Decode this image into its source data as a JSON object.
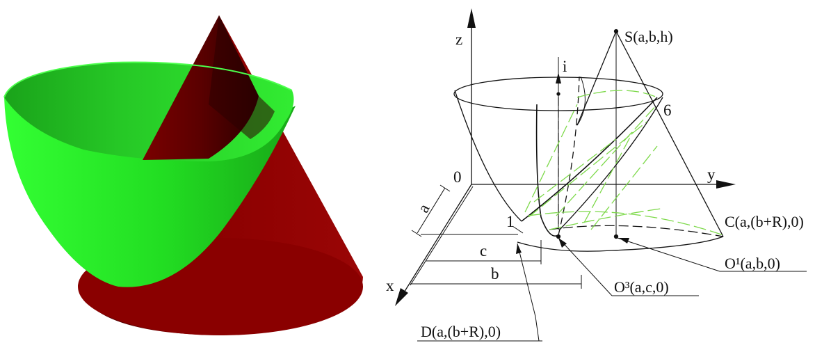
{
  "colors": {
    "cone_red": "#8b0000",
    "paraboloid_green": "#2ee62e",
    "hidden_green": "#7dd94a",
    "ink": "#111111"
  },
  "render": {
    "description_visible": false
  },
  "drawing": {
    "labels": {
      "z": "z",
      "y": "y",
      "x": "x",
      "origin": "0",
      "apex": "S(a,b,h)",
      "axis_i": "i",
      "point_6": "6",
      "point_1": "1",
      "point_C": "C(a,(b+R),0)",
      "point_O1": "O¹(a,b,0)",
      "point_O3": "O³(a,c,0)",
      "point_D": "D(a,(b+R),0)",
      "dim_a": "a",
      "dim_b": "b",
      "dim_c": "c"
    }
  }
}
